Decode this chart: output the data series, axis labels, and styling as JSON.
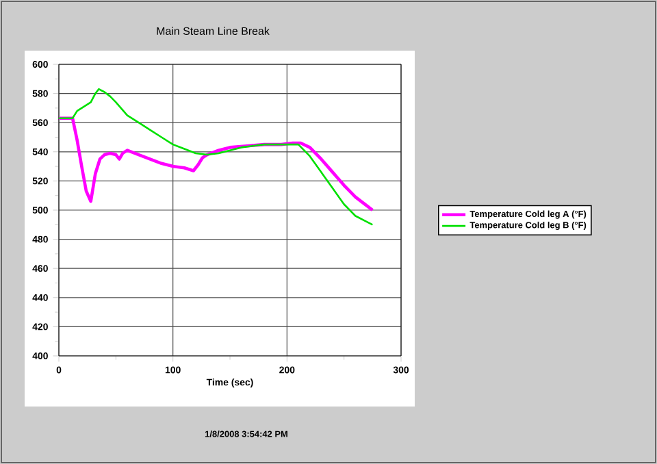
{
  "chart_data": {
    "type": "line",
    "title": "Main Steam Line Break",
    "xlabel": "Time (sec)",
    "annotations": [
      "1/8/2008 3:54:42 PM"
    ],
    "xlim": [
      0,
      300
    ],
    "xticks": [
      0,
      100,
      200,
      300
    ],
    "ylim": [
      400,
      600
    ],
    "yticks": [
      400,
      420,
      440,
      460,
      480,
      500,
      520,
      540,
      560,
      580,
      600
    ],
    "grid": true,
    "legend": "right",
    "series": [
      {
        "name": "Temperature Cold leg A (°F)",
        "color": "#ff00ff",
        "x": [
          0,
          12,
          16,
          20,
          24,
          28,
          32,
          36,
          40,
          45,
          50,
          53,
          56,
          60,
          70,
          80,
          90,
          100,
          110,
          118,
          122,
          126,
          130,
          140,
          150,
          165,
          180,
          195,
          205,
          212,
          220,
          230,
          240,
          250,
          260,
          270,
          275
        ],
        "values": [
          563,
          563,
          548,
          530,
          513,
          506,
          525,
          535,
          538,
          539,
          538,
          535,
          539,
          541,
          538,
          535,
          532,
          530,
          529,
          527,
          531,
          536,
          538,
          541,
          543,
          544,
          545,
          545,
          546,
          546,
          543,
          535,
          526,
          517,
          509,
          503,
          500
        ]
      },
      {
        "name": "Temperature Cold leg B (°F)",
        "color": "#00e000",
        "x": [
          0,
          12,
          16,
          20,
          24,
          28,
          32,
          35,
          40,
          45,
          50,
          60,
          70,
          80,
          90,
          100,
          110,
          120,
          130,
          140,
          150,
          160,
          170,
          180,
          190,
          200,
          210,
          220,
          230,
          240,
          250,
          260,
          270,
          275
        ],
        "values": [
          563,
          563,
          568,
          570,
          572,
          574,
          580,
          583,
          581,
          578,
          574,
          565,
          560,
          555,
          550,
          545,
          542,
          539,
          538,
          539,
          541,
          543,
          544,
          545,
          545,
          545,
          545,
          537,
          526,
          515,
          504,
          496,
          492,
          490
        ]
      }
    ]
  }
}
